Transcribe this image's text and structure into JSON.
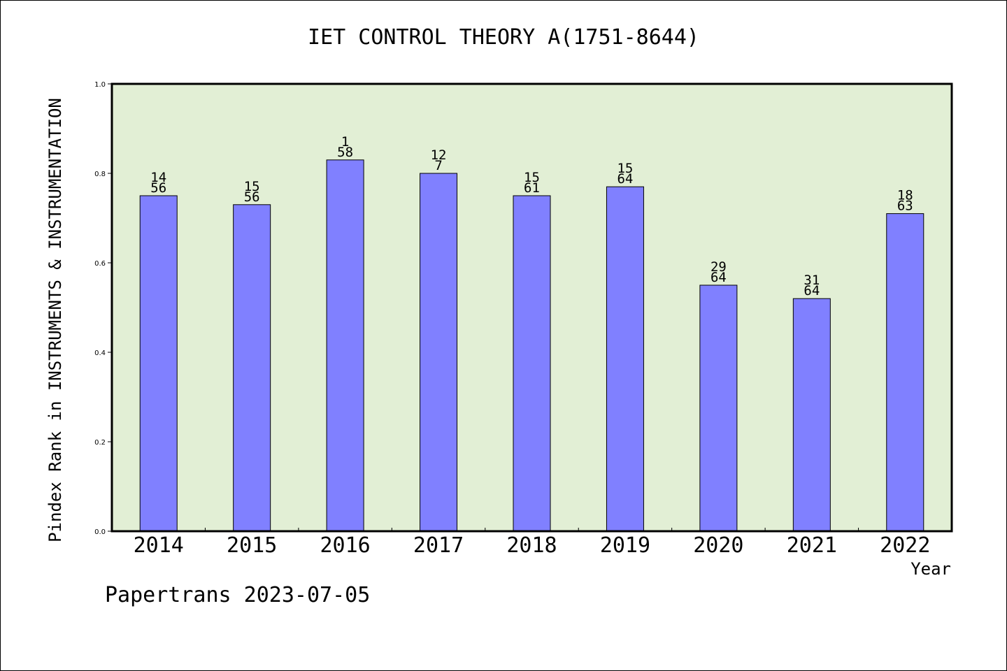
{
  "chart_data": {
    "type": "bar",
    "title": "IET CONTROL THEORY A(1751-8644)",
    "xlabel": "Year",
    "ylabel": "Pindex Rank in INSTRUMENTS & INSTRUMENTATION",
    "ylim": [
      0,
      1.0
    ],
    "yticks": [
      "0.0",
      "0.2",
      "0.4",
      "0.6",
      "0.8",
      "1.0"
    ],
    "categories": [
      "2014",
      "2015",
      "2016",
      "2017",
      "2018",
      "2019",
      "2020",
      "2021",
      "2022"
    ],
    "values": [
      0.75,
      0.73,
      0.83,
      0.8,
      0.75,
      0.77,
      0.55,
      0.52,
      0.71
    ],
    "ranks": [
      "14",
      "15",
      "1",
      "12",
      "15",
      "15",
      "29",
      "31",
      "18"
    ],
    "totals": [
      "56",
      "56",
      "58",
      "7",
      "61",
      "64",
      "64",
      "64",
      "63"
    ],
    "grid": false,
    "legend": "none",
    "colors": {
      "bar": "#8080ff",
      "plot_bg": "#e2efd5",
      "axis": "#000000"
    }
  },
  "footer": "Papertrans 2023-07-05"
}
